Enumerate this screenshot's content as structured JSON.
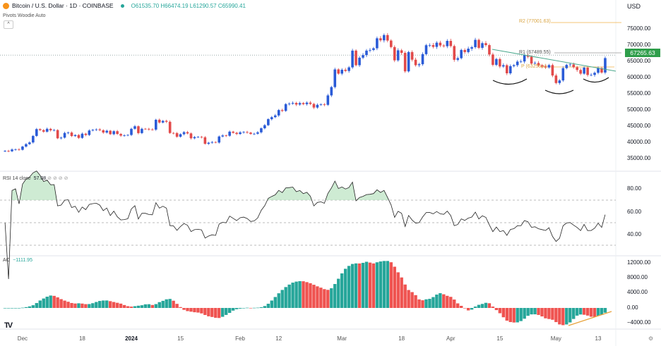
{
  "header": {
    "title": "Bitcoin / U.S. Dollar · 1D · COINBASE",
    "ohlc": "O61535.70 H66474.19 L61290.57 C65990.41",
    "indicator": "Pivots Woodie Auto",
    "currency": "USD"
  },
  "colors": {
    "up": "#2a5bd7",
    "down": "#e24a4a",
    "ao_up": "#26a69a",
    "ao_down": "#ef5350",
    "last_price_tag": "#2e9e4a",
    "pivot_r": "#f0b24a",
    "trendline": "#4aa88c"
  },
  "chart_data": [
    {
      "type": "candlestick",
      "x_start": "2023-11-26",
      "x_end": "2024-05-15",
      "last_price": "67265.63",
      "y_ticks": [
        "75000.00",
        "70000.00",
        "65000.00",
        "60000.00",
        "55000.00",
        "50000.00",
        "45000.00",
        "40000.00",
        "35000.00"
      ],
      "pivots": {
        "r2": "R2 (77001.63)",
        "r1": "R1 (67489.55)",
        "p": "P (63256.x)"
      },
      "close": [
        37400,
        37250,
        37800,
        37850,
        37700,
        38700,
        39450,
        39970,
        41980,
        44080,
        43770,
        43290,
        44170,
        43720,
        43790,
        41240,
        41450,
        42890,
        43020,
        41940,
        42260,
        41370,
        42660,
        42270,
        43650,
        43860,
        43990,
        43740,
        43020,
        43580,
        42520,
        43440,
        42590,
        42070,
        42140,
        42280,
        44180,
        44960,
        42850,
        44180,
        44160,
        43970,
        43930,
        46970,
        46110,
        46630,
        46340,
        42890,
        42850,
        41730,
        42510,
        43140,
        42750,
        41260,
        41620,
        41680,
        41560,
        39560,
        39880,
        40080,
        39930,
        41810,
        42120,
        42030,
        43300,
        42940,
        42580,
        43080,
        43190,
        43000,
        42580,
        42660,
        43090,
        44340,
        45290,
        47150,
        47770,
        48300,
        49960,
        49700,
        51800,
        51930,
        52160,
        51660,
        52120,
        51780,
        52260,
        51840,
        50730,
        51570,
        51730,
        51570,
        54480,
        57050,
        62500,
        61200,
        62400,
        62030,
        63130,
        68300,
        63800,
        66110,
        66920,
        68300,
        68500,
        69020,
        72100,
        71470,
        73100,
        71400,
        69400,
        65300,
        68390,
        67600,
        61900,
        67850,
        65500,
        63800,
        64100,
        67210,
        69960,
        70000,
        69450,
        70750,
        69880,
        69650,
        71300,
        69700,
        65460,
        65970,
        68500,
        67850,
        68900,
        69360,
        71620,
        69150,
        70600,
        70000,
        67100,
        63900,
        65700,
        63400,
        63800,
        61300,
        63500,
        63800,
        64900,
        64940,
        66840,
        66400,
        64300,
        64480,
        63760,
        63430,
        63110,
        63840,
        60620,
        58300,
        59100,
        62890,
        63890,
        64030,
        63160,
        62330,
        61190,
        63050,
        60790,
        60800,
        61460,
        62900,
        61535.7,
        65990.41
      ]
    },
    {
      "type": "line",
      "title": "RSI",
      "label": "RSI 14 close",
      "value": "57.08",
      "y_ticks": [
        "80.00",
        "60.00",
        "40.00"
      ],
      "bands": [
        70,
        50,
        30
      ]
    },
    {
      "type": "bar",
      "title": "AO",
      "label": "AO",
      "value": "−1111.95",
      "y_ticks": [
        "12000.00",
        "8000.00",
        "4000.00",
        "0.00",
        "−4000.00"
      ]
    }
  ],
  "x_axis": [
    {
      "t": "Dec",
      "d": "2023-12-01"
    },
    {
      "t": "18",
      "d": "2023-12-18"
    },
    {
      "t": "2024",
      "d": "2024-01-01",
      "bold": true
    },
    {
      "t": "15",
      "d": "2024-01-15"
    },
    {
      "t": "Feb",
      "d": "2024-02-01"
    },
    {
      "t": "12",
      "d": "2024-02-12"
    },
    {
      "t": "Mar",
      "d": "2024-03-01"
    },
    {
      "t": "18",
      "d": "2024-03-18"
    },
    {
      "t": "Apr",
      "d": "2024-04-01"
    },
    {
      "t": "15",
      "d": "2024-04-15"
    },
    {
      "t": "May",
      "d": "2024-05-01"
    },
    {
      "t": "13",
      "d": "2024-05-13"
    }
  ]
}
